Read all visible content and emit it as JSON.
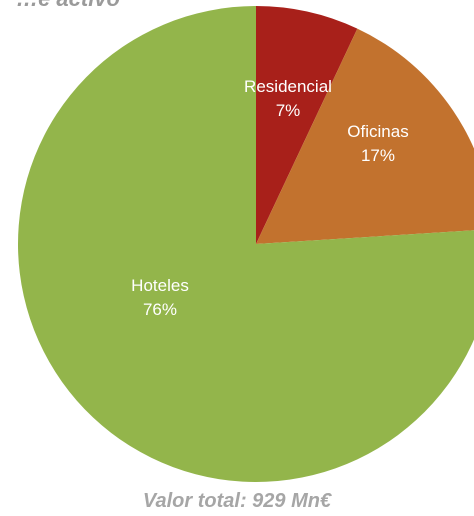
{
  "chart_data": {
    "type": "pie",
    "title": "…e activo",
    "slices": [
      {
        "label": "Residencial",
        "value": 7,
        "value_label": "7%",
        "color": "#a8201a"
      },
      {
        "label": "Oficinas",
        "value": 17,
        "value_label": "17%",
        "color": "#c2722e"
      },
      {
        "label": "Hoteles",
        "value": 76,
        "value_label": "76%",
        "color": "#93b54b"
      }
    ],
    "footer": "Valor total: 929 Mn€"
  }
}
